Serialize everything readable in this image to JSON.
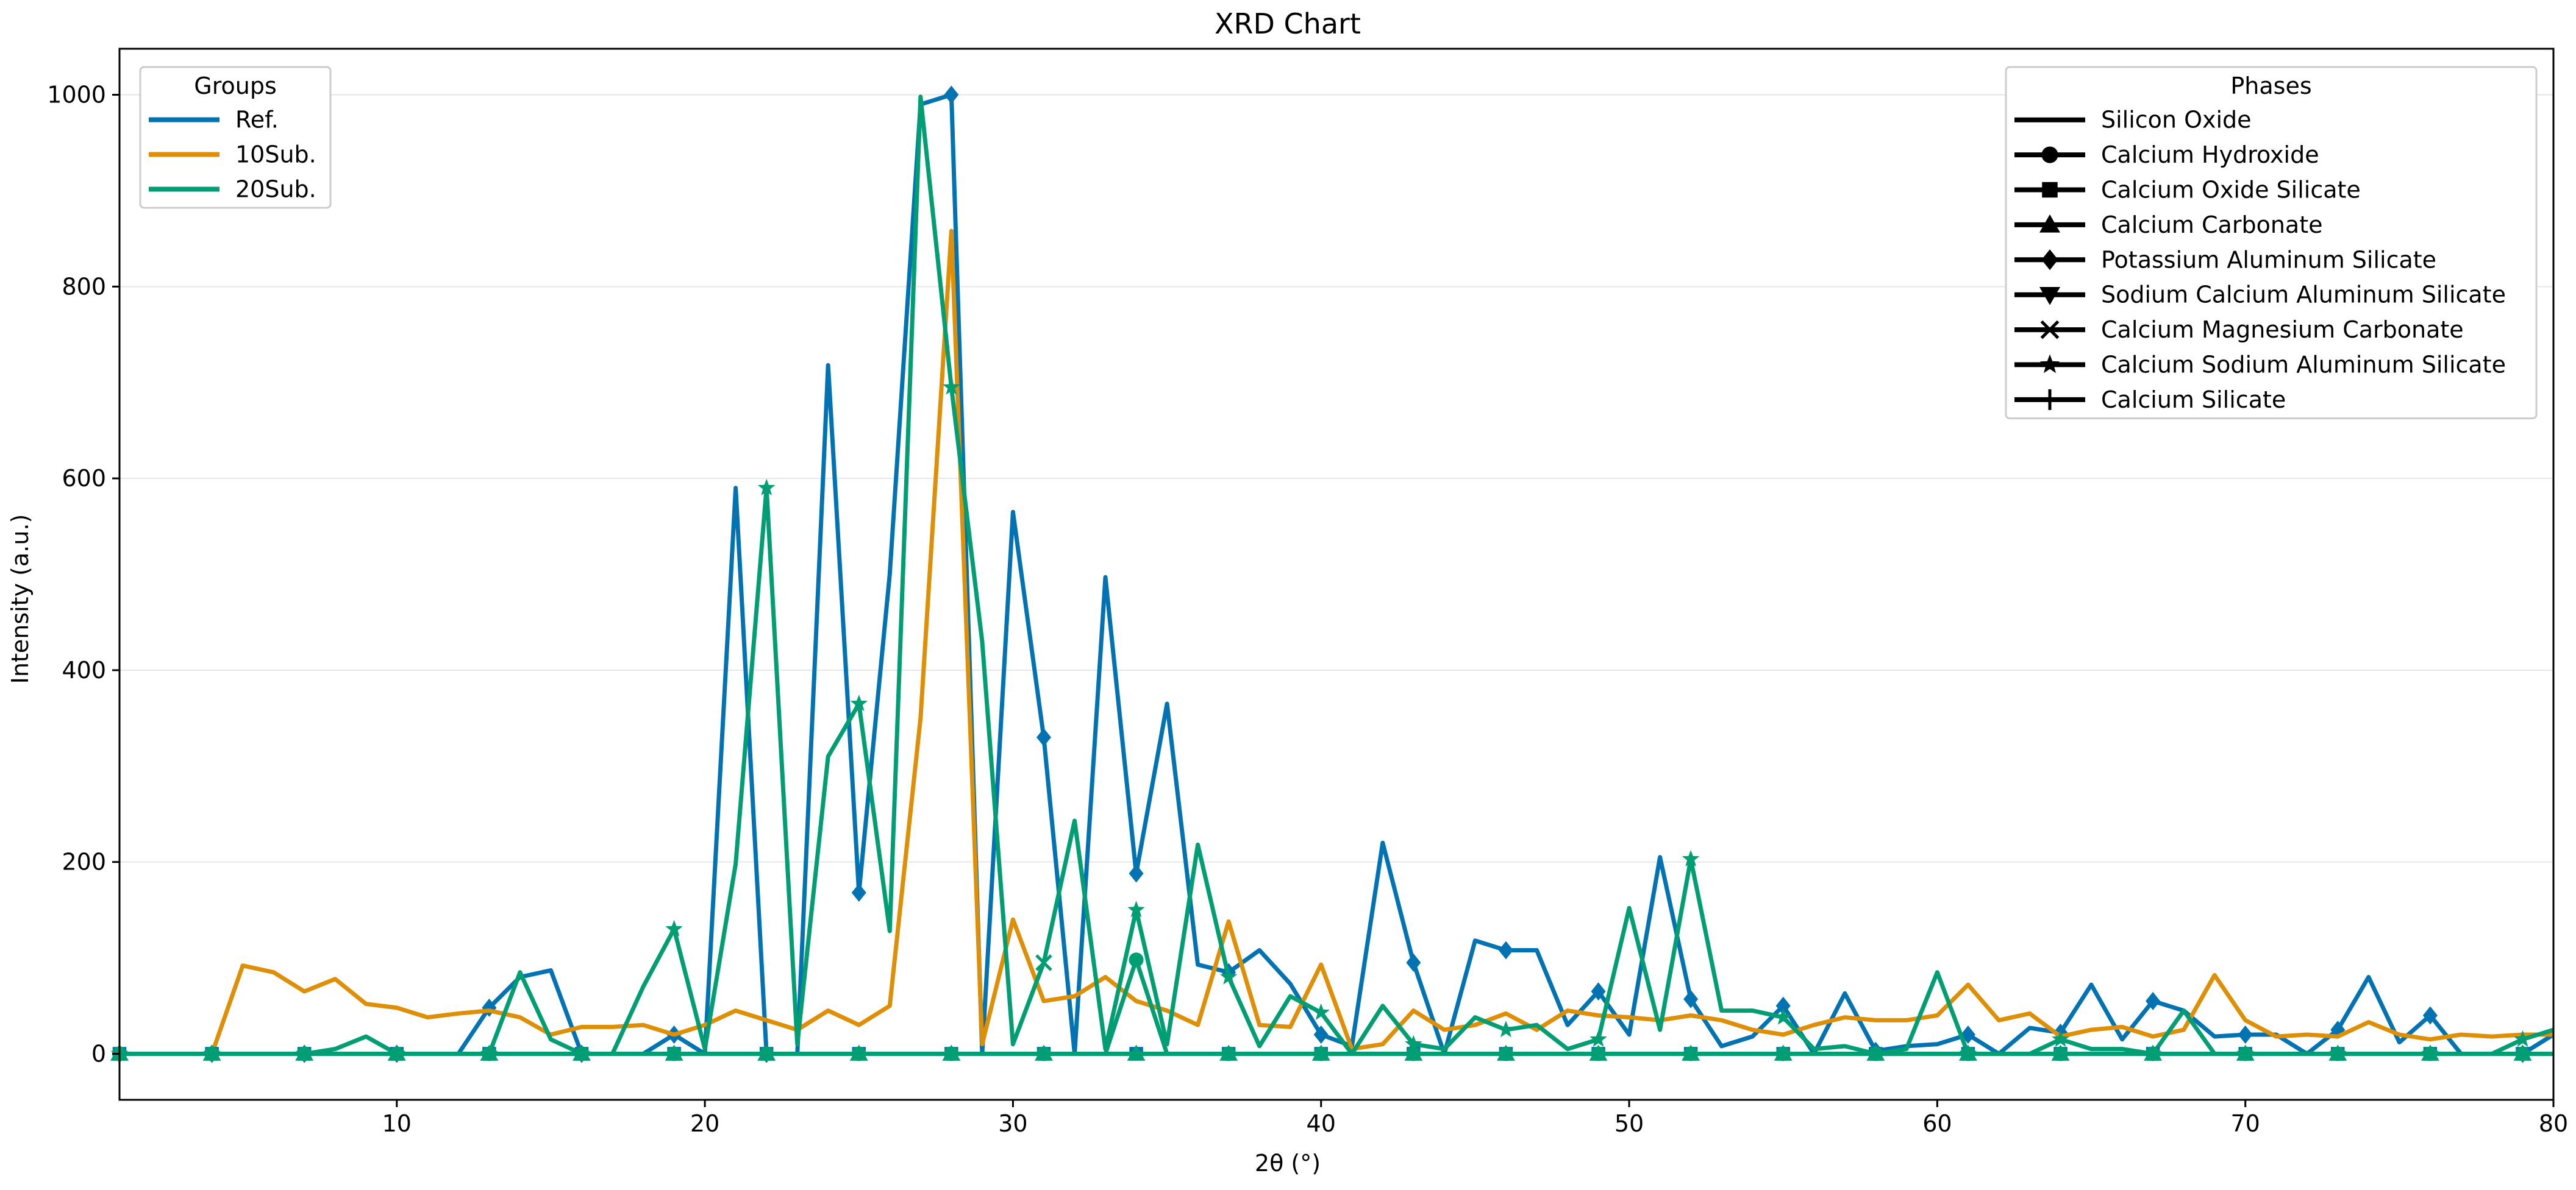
{
  "chart_data": {
    "type": "line",
    "title": "XRD Chart",
    "xlabel": "2θ (°)",
    "ylabel": "Intensity (a.u.)",
    "xlim": [
      1,
      80
    ],
    "ylim": [
      -48,
      1048
    ],
    "x_ticks": [
      10,
      20,
      30,
      40,
      50,
      60,
      70,
      80
    ],
    "y_ticks": [
      0,
      200,
      400,
      600,
      800,
      1000
    ],
    "grid": "y",
    "x": [
      1,
      2,
      3,
      4,
      5,
      6,
      7,
      8,
      9,
      10,
      11,
      12,
      13,
      14,
      15,
      16,
      17,
      18,
      19,
      20,
      21,
      22,
      23,
      24,
      25,
      26,
      27,
      28,
      29,
      30,
      31,
      32,
      33,
      34,
      35,
      36,
      37,
      38,
      39,
      40,
      41,
      42,
      43,
      44,
      45,
      46,
      47,
      48,
      49,
      50,
      51,
      52,
      53,
      54,
      55,
      56,
      57,
      58,
      59,
      60,
      61,
      62,
      63,
      64,
      65,
      66,
      67,
      68,
      69,
      70,
      71,
      72,
      73,
      74,
      75,
      76,
      77,
      78,
      79,
      80
    ],
    "series": [
      {
        "name": "Ref.",
        "color": "#0173b2",
        "values": [
          0,
          0,
          0,
          0,
          0,
          0,
          0,
          0,
          0,
          0,
          0,
          0,
          48,
          80,
          87,
          0,
          0,
          0,
          20,
          0,
          590,
          0,
          0,
          718,
          168,
          500,
          990,
          1000,
          0,
          565,
          330,
          0,
          497,
          188,
          365,
          93,
          85,
          108,
          73,
          20,
          8,
          220,
          95,
          0,
          118,
          108,
          108,
          30,
          65,
          20,
          205,
          57,
          8,
          18,
          50,
          0,
          63,
          3,
          8,
          10,
          20,
          0,
          27,
          22,
          72,
          15,
          55,
          45,
          18,
          20,
          20,
          0,
          25,
          80,
          12,
          40,
          0,
          0,
          0,
          20
        ],
        "markers": {
          "1": "D",
          "4": "D",
          "7": "D",
          "10": "D",
          "13": "D",
          "16": "D",
          "19": "D",
          "22": "D",
          "25": "D",
          "28": "D",
          "31": "D",
          "34": "D",
          "37": "D",
          "40": "D",
          "43": "D",
          "46": "D",
          "49": "D",
          "52": "D",
          "55": "D",
          "58": "D",
          "61": "D",
          "64": "D",
          "67": "D",
          "70": "D",
          "73": "D",
          "76": "D",
          "79": "D"
        }
      },
      {
        "name": "10Sub.",
        "color": "#de8f05",
        "values": [
          0,
          0,
          0,
          0,
          92,
          85,
          65,
          78,
          52,
          48,
          38,
          42,
          45,
          38,
          20,
          28,
          28,
          30,
          20,
          30,
          45,
          35,
          25,
          45,
          30,
          50,
          350,
          858,
          10,
          140,
          55,
          60,
          80,
          55,
          45,
          30,
          138,
          30,
          28,
          93,
          5,
          10,
          45,
          25,
          30,
          42,
          25,
          45,
          40,
          38,
          35,
          40,
          35,
          25,
          20,
          30,
          38,
          35,
          35,
          40,
          72,
          35,
          42,
          18,
          25,
          28,
          18,
          25,
          82,
          35,
          18,
          20,
          18,
          33,
          20,
          15,
          20,
          18,
          20,
          20
        ],
        "markers": {}
      },
      {
        "name": "20Sub.",
        "color": "#029e73",
        "values": [
          0,
          0,
          0,
          0,
          0,
          0,
          0,
          5,
          18,
          0,
          0,
          0,
          0,
          85,
          15,
          0,
          0,
          70,
          130,
          5,
          198,
          590,
          10,
          310,
          365,
          128,
          998,
          695,
          430,
          10,
          95,
          243,
          5,
          150,
          10,
          218,
          80,
          8,
          60,
          43,
          0,
          50,
          10,
          5,
          38,
          25,
          30,
          5,
          15,
          152,
          25,
          203,
          45,
          45,
          38,
          5,
          8,
          0,
          5,
          85,
          0,
          0,
          0,
          15,
          5,
          5,
          0,
          45,
          0,
          0,
          0,
          0,
          0,
          0,
          0,
          0,
          0,
          0,
          15,
          25
        ],
        "markers": {
          "1": "*",
          "4": "*",
          "7": "*",
          "10": "*",
          "13": "*",
          "16": "*",
          "19": "*",
          "22": "*",
          "25": "*",
          "28": "*",
          "31": "x",
          "34": "*",
          "37": "*",
          "40": "*",
          "43": "*",
          "46": "*",
          "49": "*",
          "52": "*",
          "55": "*",
          "58": "*",
          "61": "*",
          "64": "*",
          "67": "*",
          "70": "*",
          "73": "*",
          "76": "*",
          "79": "*"
        }
      },
      {
        "name": "",
        "color": "#0173b2",
        "values": [
          0,
          0,
          0,
          0,
          0,
          0,
          0,
          0,
          0,
          0,
          0,
          0,
          0,
          0,
          0,
          0,
          0,
          0,
          0,
          0,
          0,
          0,
          0,
          0,
          0,
          0,
          0,
          0,
          0,
          0,
          0,
          0,
          0,
          0,
          0,
          0,
          0,
          0,
          0,
          0,
          0,
          0,
          0,
          0,
          0,
          0,
          0,
          0,
          0,
          0,
          0,
          0,
          0,
          0,
          0,
          0,
          0,
          0,
          0,
          0,
          0,
          0,
          0,
          0,
          0,
          0,
          0,
          0,
          0,
          0,
          0,
          0,
          0,
          0,
          0,
          0,
          0,
          0,
          0,
          0
        ],
        "markers": {
          "1": "s",
          "4": "s",
          "7": "s",
          "10": "s",
          "13": "s",
          "16": "s",
          "19": "s",
          "22": "s",
          "25": "s",
          "28": "s",
          "31": "s",
          "34": "s",
          "37": "s",
          "40": "s",
          "43": "s",
          "46": "s",
          "49": "s",
          "52": "s",
          "55": "s",
          "58": "s",
          "61": "s",
          "64": "s",
          "67": "s",
          "70": "s",
          "73": "s",
          "76": "s",
          "79": "s"
        }
      },
      {
        "name": "",
        "color": "#029e73",
        "values": [
          0,
          0,
          0,
          0,
          0,
          0,
          0,
          0,
          0,
          0,
          0,
          0,
          0,
          0,
          0,
          0,
          0,
          0,
          0,
          0,
          0,
          0,
          0,
          0,
          0,
          0,
          0,
          0,
          0,
          0,
          0,
          0,
          0,
          98,
          0,
          0,
          0,
          0,
          0,
          0,
          0,
          0,
          0,
          0,
          0,
          0,
          0,
          0,
          0,
          0,
          0,
          0,
          0,
          0,
          0,
          0,
          0,
          0,
          0,
          0,
          0,
          0,
          0,
          0,
          0,
          0,
          0,
          0,
          0,
          0,
          0,
          0,
          0,
          0,
          0,
          0,
          0,
          0,
          0,
          0
        ],
        "markers": {
          "1": "o",
          "4": "o",
          "7": "o",
          "10": "o",
          "13": "o",
          "16": "o",
          "19": "o",
          "22": "o",
          "25": "o",
          "28": "o",
          "31": "o",
          "34": "o",
          "37": "o",
          "40": "o",
          "43": "o",
          "46": "o",
          "49": "o",
          "52": "o",
          "55": "o",
          "58": "o",
          "61": "o",
          "64": "o",
          "67": "o",
          "70": "o",
          "73": "o",
          "76": "o",
          "79": "o"
        }
      },
      {
        "name": "",
        "color": "#029e73",
        "values": [
          0,
          0,
          0,
          0,
          0,
          0,
          0,
          0,
          0,
          0,
          0,
          0,
          0,
          0,
          0,
          0,
          0,
          0,
          0,
          0,
          0,
          0,
          0,
          0,
          0,
          0,
          0,
          0,
          0,
          0,
          0,
          0,
          0,
          0,
          0,
          0,
          0,
          0,
          0,
          0,
          0,
          0,
          0,
          0,
          0,
          0,
          0,
          0,
          0,
          0,
          0,
          0,
          0,
          0,
          0,
          0,
          0,
          0,
          0,
          0,
          0,
          0,
          0,
          0,
          0,
          0,
          0,
          0,
          0,
          0,
          0,
          0,
          0,
          0,
          0,
          0,
          0,
          0,
          0,
          0
        ],
        "markers": {
          "1": "^",
          "4": "^",
          "7": "^",
          "10": "^",
          "13": "^",
          "16": "^",
          "19": "^",
          "22": "^",
          "25": "^",
          "28": "^",
          "31": "^",
          "34": "^",
          "37": "^",
          "40": "^",
          "43": "^",
          "46": "^",
          "49": "^",
          "52": "^",
          "55": "^",
          "58": "^",
          "61": "^",
          "64": "^",
          "67": "^",
          "70": "^",
          "73": "^",
          "76": "^",
          "79": "^"
        }
      }
    ],
    "legends": [
      {
        "title": "Groups",
        "placement": "top-left",
        "entries": [
          {
            "label": "Ref.",
            "color": "#0173b2",
            "marker": ""
          },
          {
            "label": "10Sub.",
            "color": "#de8f05",
            "marker": ""
          },
          {
            "label": "20Sub.",
            "color": "#029e73",
            "marker": ""
          }
        ]
      },
      {
        "title": "Phases",
        "placement": "top-right",
        "entries": [
          {
            "label": "Silicon Oxide",
            "color": "#000000",
            "marker": ""
          },
          {
            "label": "Calcium Hydroxide",
            "color": "#000000",
            "marker": "o"
          },
          {
            "label": "Calcium Oxide Silicate",
            "color": "#000000",
            "marker": "s"
          },
          {
            "label": "Calcium Carbonate",
            "color": "#000000",
            "marker": "^"
          },
          {
            "label": "Potassium Aluminum Silicate",
            "color": "#000000",
            "marker": "D"
          },
          {
            "label": "Sodium Calcium Aluminum Silicate",
            "color": "#000000",
            "marker": "v"
          },
          {
            "label": "Calcium Magnesium Carbonate",
            "color": "#000000",
            "marker": "x"
          },
          {
            "label": "Calcium Sodium Aluminum Silicate",
            "color": "#000000",
            "marker": "*"
          },
          {
            "label": "Calcium Silicate",
            "color": "#000000",
            "marker": "+"
          }
        ]
      }
    ]
  }
}
